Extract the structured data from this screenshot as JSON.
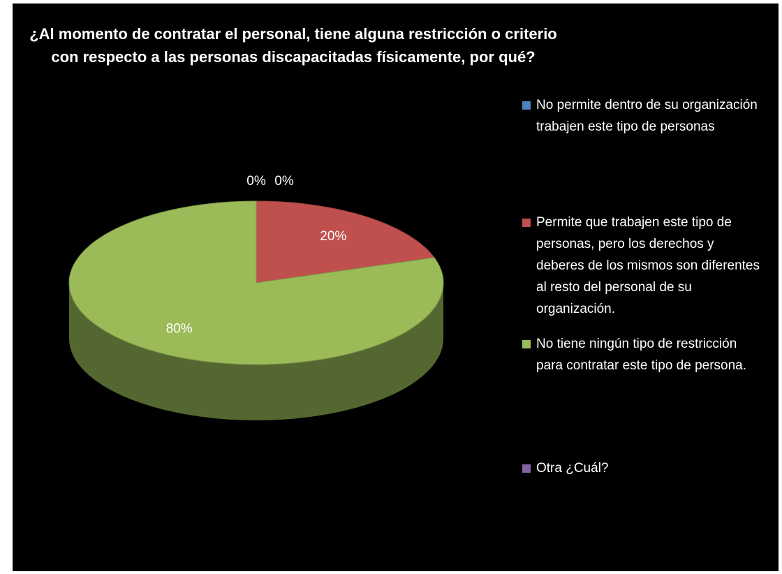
{
  "chart_data": {
    "type": "pie",
    "title": "¿Al momento de contratar el personal, tiene alguna restricción o criterio con respecto a las personas discapacitadas físicamente, por qué?",
    "categories": [
      "No permite dentro de su organización trabajen este tipo de personas",
      "Permite que trabajen este tipo de personas, pero los derechos y deberes de los mismos son diferentes al resto del personal de su organización.",
      "No tiene ningún tipo de restricción para contratar este tipo de persona.",
      "Otra ¿Cuál?"
    ],
    "values": [
      0,
      20,
      80,
      0
    ],
    "value_labels": [
      "0%",
      "20%",
      "80%",
      "0%"
    ],
    "colors": [
      "#4f81bd",
      "#c0504d",
      "#9bbb59",
      "#8064a2"
    ],
    "legend": "right"
  }
}
